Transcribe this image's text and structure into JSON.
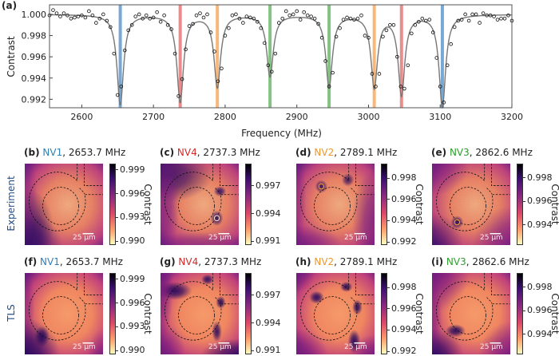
{
  "figure": {
    "panel_a_label": "(a)",
    "row_labels": [
      "Experiment",
      "TLS"
    ],
    "colorbar_label": "Contrast",
    "scale_bar_text": "25 µm"
  },
  "chart_data": {
    "type": "scatter",
    "xlabel": "Frequency (MHz)",
    "ylabel": "Contrast",
    "xlim": [
      2555,
      3200
    ],
    "ylim": [
      0.9912,
      1.0009
    ],
    "xticks": [
      "2600",
      "2700",
      "2800",
      "2900",
      "3000",
      "3100",
      "3200"
    ],
    "yticks": [
      "1.000",
      "0.998",
      "0.996",
      "0.994",
      "0.992"
    ],
    "grid": false,
    "marker": "open-circle",
    "fit_color": "#777777",
    "fit_dips": [
      {
        "center": 2653.7,
        "depth": 0.0085,
        "color": "#4a8cc6"
      },
      {
        "center": 2737.3,
        "depth": 0.0082,
        "color": "#e06666"
      },
      {
        "center": 2789.1,
        "depth": 0.0068,
        "color": "#f5a050"
      },
      {
        "center": 2862.6,
        "depth": 0.0058,
        "color": "#5aad57"
      },
      {
        "center": 2945.0,
        "depth": 0.0068,
        "color": "#5aad57"
      },
      {
        "center": 3008.0,
        "depth": 0.0068,
        "color": "#f5a050"
      },
      {
        "center": 3046.0,
        "depth": 0.0075,
        "color": "#e06666"
      },
      {
        "center": 3103.0,
        "depth": 0.0087,
        "color": "#4a8cc6"
      }
    ],
    "x": [
      2555,
      2560,
      2565,
      2570,
      2575,
      2580,
      2585,
      2590,
      2595,
      2600,
      2605,
      2610,
      2615,
      2620,
      2625,
      2630,
      2635,
      2640,
      2645,
      2650,
      2655,
      2660,
      2665,
      2670,
      2675,
      2680,
      2685,
      2690,
      2695,
      2700,
      2705,
      2710,
      2715,
      2720,
      2725,
      2730,
      2735,
      2740,
      2745,
      2750,
      2755,
      2760,
      2765,
      2770,
      2775,
      2780,
      2785,
      2790,
      2795,
      2800,
      2805,
      2810,
      2815,
      2820,
      2825,
      2830,
      2835,
      2840,
      2845,
      2850,
      2855,
      2860,
      2865,
      2870,
      2875,
      2880,
      2885,
      2890,
      2895,
      2900,
      2905,
      2910,
      2915,
      2920,
      2925,
      2930,
      2935,
      2940,
      2945,
      2950,
      2955,
      2960,
      2965,
      2970,
      2975,
      2980,
      2985,
      2990,
      2995,
      3000,
      3005,
      3010,
      3015,
      3020,
      3025,
      3030,
      3035,
      3040,
      3045,
      3050,
      3055,
      3060,
      3065,
      3070,
      3075,
      3080,
      3085,
      3090,
      3095,
      3100,
      3105,
      3110,
      3115,
      3120,
      3125,
      3130,
      3135,
      3140,
      3145,
      3150,
      3155,
      3160,
      3165,
      3170,
      3175,
      3180,
      3185,
      3190,
      3195,
      3200
    ],
    "y": [
      0.9999,
      1.0004,
      1.0001,
      0.9998,
      1.0001,
      0.9999,
      0.9996,
      0.9997,
      0.9998,
      0.9999,
      0.9997,
      1.0003,
      0.9999,
      0.9992,
      0.9996,
      1.0,
      0.9994,
      0.9988,
      0.9963,
      0.9924,
      0.9932,
      0.9966,
      0.9985,
      0.999,
      0.9998,
      1.0,
      0.9996,
      0.9999,
      0.9996,
      0.9997,
      1.0002,
      0.9993,
      0.9999,
      0.999,
      0.9986,
      0.9963,
      0.9923,
      0.9939,
      0.9967,
      0.9989,
      0.9991,
      0.9999,
      1.0001,
      0.9997,
      1.0,
      0.9983,
      0.9965,
      0.9937,
      0.9949,
      0.998,
      0.9987,
      0.9999,
      1.0,
      0.9996,
      0.9992,
      0.9998,
      0.9997,
      0.9996,
      0.9993,
      0.9987,
      0.9973,
      0.9952,
      0.9946,
      0.9963,
      0.9992,
      0.9996,
      1.0003,
      0.9999,
      1.0,
      1.0003,
      0.9995,
      1.0002,
      0.9999,
      0.9998,
      0.9996,
      0.9991,
      0.9978,
      0.9956,
      0.9932,
      0.9945,
      0.9979,
      0.9987,
      0.9995,
      0.9997,
      0.9996,
      0.9995,
      0.9996,
      0.9999,
      0.998,
      0.9978,
      0.9944,
      0.9932,
      0.9944,
      0.9979,
      0.9985,
      0.999,
      0.999,
      0.996,
      0.9932,
      0.993,
      0.9952,
      0.9982,
      0.999,
      0.9993,
      0.9996,
      0.9994,
      0.9995,
      0.9983,
      0.9959,
      0.9932,
      0.9917,
      0.9952,
      0.9972,
      0.9988,
      0.9994,
      0.9995,
      1.0,
      0.9994,
      1.0,
      1.0,
      0.9992,
      1.0001,
      0.9999,
      0.9999,
      0.9998,
      0.9995,
      0.9996,
      0.9996,
      0.9999,
      0.9994
    ]
  },
  "panels": [
    {
      "label": "(b)",
      "nv": "NV1",
      "nv_color": "#2f7fb8",
      "freq": ", 2653.7 MHz",
      "row": 0,
      "col": 0,
      "clim": [
        0.9895,
        0.9998
      ],
      "ticks": [
        "0.999",
        "0.996",
        "0.993",
        "0.990"
      ],
      "tick_values": [
        0.999,
        0.996,
        0.993,
        0.99
      ],
      "show_cbar_label": true
    },
    {
      "label": "(c)",
      "nv": "NV4",
      "nv_color": "#d62728",
      "freq": ", 2737.3 MHz",
      "row": 0,
      "col": 1,
      "clim": [
        0.9906,
        0.9994
      ],
      "ticks": [
        "0.997",
        "0.994",
        "0.991"
      ],
      "tick_values": [
        0.997,
        0.994,
        0.991
      ],
      "show_cbar_label": false
    },
    {
      "label": "(d)",
      "nv": "NV2",
      "nv_color": "#f0962a",
      "freq": ", 2789.1 MHz",
      "row": 0,
      "col": 2,
      "clim": [
        0.9917,
        0.99935
      ],
      "ticks": [
        "0.998",
        "0.996",
        "0.994",
        "0.992"
      ],
      "tick_values": [
        0.998,
        0.996,
        0.994,
        0.992
      ],
      "show_cbar_label": true
    },
    {
      "label": "(e)",
      "nv": "NV3",
      "nv_color": "#2ca02c",
      "freq": ", 2862.6 MHz",
      "row": 0,
      "col": 3,
      "clim": [
        0.9923,
        0.99922
      ],
      "ticks": [
        "0.998",
        "0.996",
        "0.994"
      ],
      "tick_values": [
        0.998,
        0.996,
        0.994
      ],
      "show_cbar_label": true
    },
    {
      "label": "(f)",
      "nv": "NV1",
      "nv_color": "#2f7fb8",
      "freq": ", 2653.7 MHz",
      "row": 1,
      "col": 0,
      "clim": [
        0.9895,
        0.9998
      ],
      "ticks": [
        "0.999",
        "0.996",
        "0.993",
        "0.990"
      ],
      "tick_values": [
        0.999,
        0.996,
        0.993,
        0.99
      ],
      "show_cbar_label": true
    },
    {
      "label": "(g)",
      "nv": "NV4",
      "nv_color": "#d62728",
      "freq": ", 2737.3 MHz",
      "row": 1,
      "col": 1,
      "clim": [
        0.9906,
        0.9994
      ],
      "ticks": [
        "0.997",
        "0.994",
        "0.991"
      ],
      "tick_values": [
        0.997,
        0.994,
        0.991
      ],
      "show_cbar_label": false
    },
    {
      "label": "(h)",
      "nv": "NV2",
      "nv_color": "#f0962a",
      "freq": ", 2789.1 MHz",
      "row": 1,
      "col": 2,
      "clim": [
        0.9917,
        0.99935
      ],
      "ticks": [
        "0.998",
        "0.996",
        "0.994",
        "0.992"
      ],
      "tick_values": [
        0.998,
        0.996,
        0.994,
        0.992
      ],
      "show_cbar_label": true
    },
    {
      "label": "(i)",
      "nv": "NV3",
      "nv_color": "#2ca02c",
      "freq": ", 2862.6 MHz",
      "row": 1,
      "col": 3,
      "clim": [
        0.9923,
        0.99922
      ],
      "ticks": [
        "0.998",
        "0.996",
        "0.994"
      ],
      "tick_values": [
        0.998,
        0.996,
        0.994
      ],
      "show_cbar_label": true
    }
  ]
}
